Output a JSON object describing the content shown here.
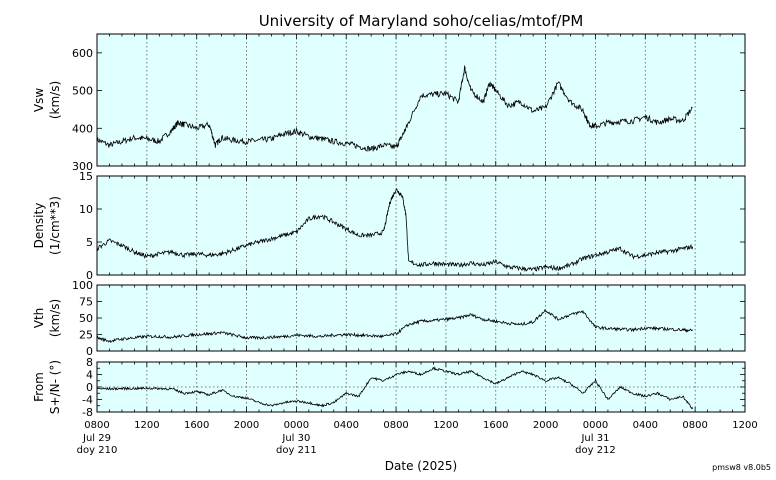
{
  "chart_data": {
    "type": "line",
    "title": "University of Maryland  soho/celias/mtof/PM",
    "xlabel": "Date (2025)",
    "credit": "pmsw8 v8.0b5",
    "x_unit": "hours since 2025-07-29 08:00 UT (doy 210)",
    "xlim": [
      0,
      52
    ],
    "x_ticks": [
      {
        "x": 0,
        "label": "0800",
        "sub": [
          "Jul 29",
          "doy 210"
        ]
      },
      {
        "x": 4,
        "label": "1200"
      },
      {
        "x": 8,
        "label": "1600"
      },
      {
        "x": 12,
        "label": "2000"
      },
      {
        "x": 16,
        "label": "0000",
        "sub": [
          "Jul 30",
          "doy 211"
        ]
      },
      {
        "x": 20,
        "label": "0400"
      },
      {
        "x": 24,
        "label": "0800"
      },
      {
        "x": 28,
        "label": "1200"
      },
      {
        "x": 32,
        "label": "1600"
      },
      {
        "x": 36,
        "label": "2000"
      },
      {
        "x": 40,
        "label": "0000",
        "sub": [
          "Jul 31",
          "doy 212"
        ]
      },
      {
        "x": 44,
        "label": "0400"
      },
      {
        "x": 48,
        "label": "0800"
      },
      {
        "x": 52,
        "label": "1200"
      }
    ],
    "panels": [
      {
        "ylabel": [
          "Vsw",
          "(km/s)"
        ],
        "ylim": [
          300,
          650
        ],
        "yticks": [
          300,
          400,
          500,
          600
        ],
        "zero_line": false,
        "series": {
          "color": "#000000",
          "x": [
            0,
            1,
            2,
            3,
            4,
            5,
            6,
            6.5,
            7,
            8,
            9,
            9.5,
            10,
            11,
            12,
            13,
            14,
            15,
            16,
            17,
            18,
            19,
            20,
            21,
            22,
            23,
            24,
            24.5,
            25,
            26,
            27,
            28,
            29,
            29.5,
            30,
            31,
            31.5,
            32,
            33,
            34,
            35,
            36,
            37,
            38,
            39,
            39.5,
            40,
            41,
            42,
            43,
            44,
            45,
            46,
            47,
            47.8
          ],
          "y": [
            370,
            355,
            365,
            375,
            372,
            365,
            395,
            415,
            410,
            400,
            410,
            355,
            375,
            368,
            365,
            368,
            372,
            385,
            392,
            378,
            372,
            365,
            360,
            352,
            345,
            355,
            350,
            380,
            415,
            487,
            490,
            492,
            470,
            560,
            500,
            470,
            520,
            500,
            460,
            470,
            445,
            455,
            520,
            470,
            448,
            410,
            405,
            415,
            418,
            420,
            430,
            415,
            425,
            420,
            455
          ]
        }
      },
      {
        "ylabel": [
          "Density",
          "(1/cm**3)"
        ],
        "ylim": [
          0,
          15
        ],
        "yticks": [
          0,
          5,
          10,
          15
        ],
        "zero_line": false,
        "series": {
          "color": "#000000",
          "x": [
            0,
            1,
            2,
            3,
            4,
            5,
            6,
            7,
            8,
            9,
            10,
            11,
            12,
            13,
            14,
            15,
            16,
            17,
            18,
            19,
            20,
            21,
            22,
            23,
            23.5,
            24,
            24.5,
            24.8,
            25,
            26,
            27,
            28,
            29,
            30,
            31,
            32,
            33,
            34,
            35,
            36,
            37,
            38,
            39,
            40,
            41,
            42,
            43,
            44,
            45,
            46,
            47,
            47.8
          ],
          "y": [
            4,
            5.2,
            4.5,
            3.5,
            2.8,
            3.2,
            3.5,
            3.0,
            3.2,
            3.0,
            3.2,
            3.8,
            4.5,
            5,
            5.5,
            6,
            6.5,
            8.5,
            9,
            8,
            7,
            6,
            6,
            6.5,
            11,
            13,
            12,
            9,
            2,
            1.5,
            1.8,
            1.6,
            1.5,
            1.8,
            1.5,
            2,
            1.2,
            1,
            0.8,
            1.2,
            1,
            1.5,
            2.5,
            3,
            3.5,
            4,
            2.8,
            3,
            3.4,
            3.6,
            4,
            4.3
          ]
        }
      },
      {
        "ylabel": [
          "Vth",
          "(km/s)"
        ],
        "ylim": [
          0,
          100
        ],
        "yticks": [
          0,
          25,
          50,
          75,
          100
        ],
        "zero_line": false,
        "series": {
          "color": "#000000",
          "x": [
            0,
            1,
            2,
            3,
            4,
            5,
            6,
            7,
            8,
            9,
            10,
            11,
            12,
            13,
            14,
            15,
            16,
            17,
            18,
            19,
            20,
            21,
            22,
            23,
            24,
            25,
            26,
            27,
            28,
            29,
            30,
            31,
            32,
            33,
            34,
            35,
            36,
            37,
            38,
            39,
            40,
            41,
            42,
            43,
            44,
            45,
            46,
            47,
            47.8
          ],
          "y": [
            20,
            15,
            18,
            20,
            22,
            22,
            21,
            23,
            25,
            26,
            28,
            24,
            20,
            20,
            21,
            22,
            24,
            23,
            22,
            24,
            25,
            24,
            23,
            22,
            26,
            40,
            45,
            46,
            48,
            50,
            55,
            48,
            45,
            42,
            40,
            44,
            62,
            48,
            55,
            60,
            36,
            34,
            33,
            32,
            35,
            34,
            33,
            32,
            31
          ]
        }
      },
      {
        "ylabel": [
          "From",
          "S+/N- (°)"
        ],
        "ylim": [
          -8,
          8
        ],
        "yticks": [
          -8,
          -4,
          0,
          4,
          8
        ],
        "minor_yticks": [
          -6,
          -2,
          2,
          6
        ],
        "zero_line": true,
        "series": {
          "color": "#000000",
          "x": [
            0,
            1,
            2,
            3,
            4,
            5,
            6,
            7,
            8,
            9,
            10,
            11,
            12,
            13,
            14,
            15,
            16,
            17,
            18,
            19,
            20,
            21,
            22,
            23,
            24,
            25,
            26,
            27,
            28,
            29,
            30,
            31,
            32,
            33,
            34,
            35,
            36,
            37,
            38,
            39,
            40,
            41,
            42,
            43,
            44,
            45,
            46,
            47,
            47.8
          ],
          "y": [
            -0.5,
            -0.6,
            -0.5,
            -0.5,
            -0.4,
            -0.5,
            -0.6,
            -2,
            -1.5,
            -2.5,
            -1,
            -3,
            -3.5,
            -5,
            -6,
            -5,
            -4.5,
            -5,
            -6,
            -5,
            -2,
            -3,
            3,
            2,
            4,
            5,
            4,
            6,
            5,
            4,
            5,
            3,
            1,
            3,
            5,
            4,
            2,
            3,
            1,
            -2,
            2,
            -4,
            0,
            -2,
            -3,
            -2,
            -4,
            -3,
            -7
          ]
        }
      }
    ]
  }
}
